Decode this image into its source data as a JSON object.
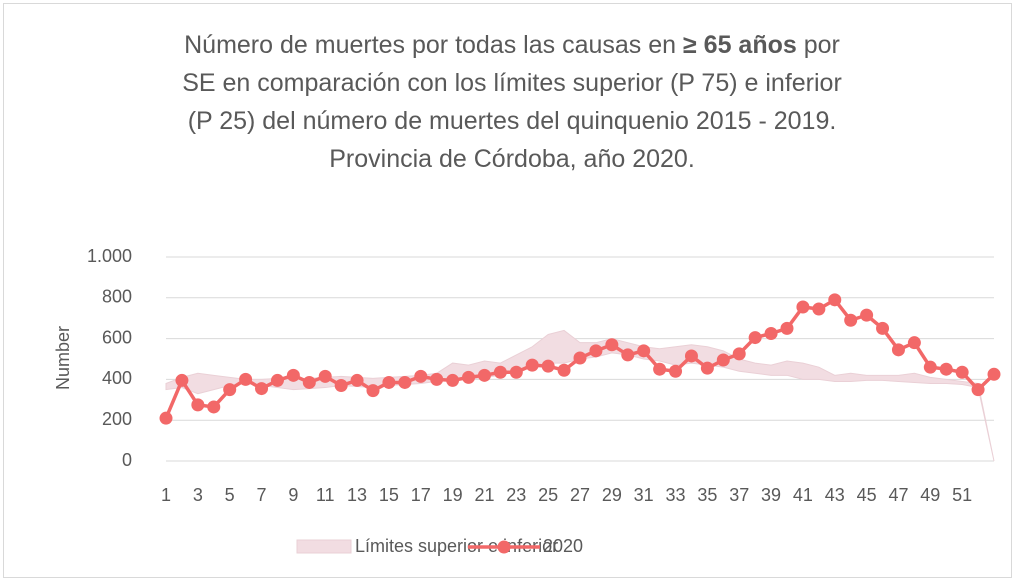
{
  "chart_data": {
    "type": "line",
    "title": [
      "Número de muertes por todas las causas en ",
      "≥ 65 años",
      " por SE en comparación con los límites superior (P 75) e inferior (P 25) del número de  muertes del quinquenio 2015 - 2019. Provincia de Córdoba, año 2020."
    ],
    "y_label": "Number",
    "categories": [
      "1",
      null,
      "3",
      null,
      "5",
      null,
      "7",
      null,
      "9",
      null,
      "11",
      null,
      "13",
      null,
      "15",
      null,
      "17",
      null,
      "19",
      null,
      "21",
      null,
      "23",
      null,
      "25",
      null,
      "27",
      null,
      "29",
      null,
      "31",
      null,
      "33",
      null,
      "35",
      null,
      "37",
      null,
      "39",
      null,
      "41",
      null,
      "43",
      null,
      "45",
      null,
      "47",
      null,
      "49",
      null,
      "51",
      null,
      null
    ],
    "ylim": [
      0,
      1000
    ],
    "yticks": [
      0,
      200,
      400,
      600,
      800,
      {
        "value": 1000,
        "label": "1.000"
      }
    ],
    "grid": true,
    "band": {
      "name": "Límites superior e inferior",
      "color": "#f2dde2",
      "upper": [
        380,
        410,
        430,
        420,
        410,
        400,
        400,
        405,
        400,
        405,
        410,
        415,
        410,
        405,
        410,
        415,
        420,
        430,
        480,
        470,
        490,
        480,
        520,
        560,
        620,
        640,
        580,
        580,
        600,
        580,
        560,
        550,
        560,
        570,
        560,
        540,
        500,
        480,
        470,
        490,
        480,
        460,
        420,
        430,
        420,
        420,
        420,
        430,
        410,
        400,
        390,
        380,
        0
      ],
      "lower": [
        350,
        360,
        330,
        350,
        370,
        380,
        370,
        360,
        350,
        355,
        360,
        370,
        365,
        360,
        370,
        375,
        380,
        390,
        395,
        400,
        410,
        420,
        440,
        460,
        480,
        480,
        500,
        510,
        530,
        520,
        500,
        490,
        470,
        480,
        470,
        460,
        440,
        430,
        420,
        420,
        400,
        400,
        390,
        390,
        395,
        395,
        390,
        385,
        380,
        380,
        375,
        360,
        0
      ]
    },
    "series": [
      {
        "name": "2020",
        "color": "#f26868",
        "values": [
          210,
          395,
          275,
          265,
          350,
          400,
          355,
          395,
          420,
          385,
          415,
          370,
          395,
          345,
          385,
          385,
          415,
          400,
          395,
          410,
          420,
          435,
          435,
          470,
          465,
          445,
          505,
          540,
          570,
          520,
          540,
          450,
          440,
          515,
          455,
          495,
          525,
          605,
          625,
          650,
          755,
          745,
          790,
          690,
          715,
          650,
          545,
          580,
          460,
          450,
          435,
          350,
          425
        ]
      }
    ]
  }
}
